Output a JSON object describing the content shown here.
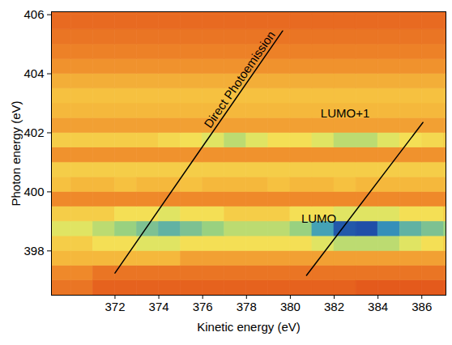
{
  "chart_data": {
    "type": "heatmap",
    "xlabel": "Kinetic energy (eV)",
    "ylabel": "Photon energy (eV)",
    "xlim": [
      369.1,
      387.1
    ],
    "ylim": [
      396.5,
      406.1
    ],
    "xticks": [
      372,
      374,
      376,
      378,
      380,
      382,
      384,
      386
    ],
    "yticks": [
      398,
      400,
      402,
      404,
      406
    ],
    "x_edges": [
      369,
      370,
      371,
      372,
      373,
      374,
      375,
      376,
      377,
      378,
      379,
      380,
      381,
      382,
      383,
      384,
      385,
      386,
      387,
      388
    ],
    "y_edges": [
      396.5,
      397,
      397.5,
      398,
      398.5,
      399,
      399.5,
      400,
      400.5,
      401,
      401.5,
      402,
      402.5,
      403,
      403.5,
      404,
      404.5,
      405,
      405.5,
      406,
      406.5
    ],
    "values": [
      [
        2.5,
        2.5,
        2,
        2,
        2,
        2,
        2,
        2,
        2,
        2,
        2,
        2,
        2,
        2,
        1.8,
        1.8,
        1.8,
        1.8,
        1.8
      ],
      [
        3,
        3,
        2.5,
        2.5,
        2.5,
        2.5,
        2.5,
        2.5,
        2.5,
        2.5,
        2.5,
        2.5,
        2.5,
        2.5,
        2.5,
        2.5,
        2.5,
        2.5,
        2.5
      ],
      [
        4,
        4,
        4,
        4,
        4,
        4,
        3.5,
        3.5,
        3.5,
        3.5,
        3.5,
        3.5,
        3.5,
        3.5,
        3.5,
        3.5,
        3.5,
        3.5,
        3.5
      ],
      [
        4.5,
        4.5,
        5,
        5,
        5.5,
        5.5,
        5,
        5,
        5,
        5,
        5,
        5,
        5.5,
        6,
        6,
        6,
        5.5,
        5,
        4.5
      ],
      [
        5.5,
        5.5,
        6,
        6.5,
        7,
        7.5,
        7,
        6.5,
        6,
        6,
        6,
        6.5,
        8,
        9.8,
        10,
        8.5,
        7.5,
        7,
        6.5
      ],
      [
        4.5,
        4.5,
        4.5,
        5,
        5,
        5.5,
        5,
        5,
        4.5,
        4.5,
        4.5,
        5,
        5,
        5.5,
        5.5,
        5.5,
        5,
        5,
        4.5
      ],
      [
        3,
        3,
        3,
        3,
        3,
        3,
        3,
        3,
        3,
        3,
        3,
        3,
        3,
        3,
        3,
        3,
        3,
        3,
        3
      ],
      [
        4.2,
        4,
        4,
        4.2,
        4,
        4,
        4.2,
        4,
        4,
        4,
        4.2,
        4,
        4,
        4.2,
        4,
        4,
        4,
        4,
        4
      ],
      [
        4.5,
        4.5,
        4.5,
        4.5,
        4.5,
        4.5,
        4.5,
        4.5,
        4.5,
        4.5,
        4.5,
        4.5,
        4.5,
        4.5,
        4.5,
        4.5,
        4.5,
        4.5,
        4.5
      ],
      [
        3.2,
        3.2,
        3.2,
        3.2,
        3.2,
        3.2,
        3.2,
        3.2,
        3.2,
        3.2,
        3.2,
        3.2,
        3.2,
        3.2,
        3.2,
        3.2,
        3.2,
        3.2,
        3.2
      ],
      [
        4.5,
        4.5,
        4.5,
        4.5,
        4.5,
        4.8,
        5,
        5.5,
        6,
        5.5,
        5,
        5,
        5.5,
        6,
        6,
        5.5,
        5,
        4.8,
        4.5
      ],
      [
        3.5,
        3.5,
        3.5,
        3.5,
        3.5,
        3.5,
        3.5,
        3.5,
        3.5,
        3.5,
        3.5,
        3.5,
        3.5,
        3.5,
        3.5,
        3.5,
        3.5,
        3.5,
        3.5
      ],
      [
        4,
        4,
        4,
        4,
        4,
        4,
        4,
        4,
        4,
        4,
        4,
        4,
        4,
        4,
        4,
        4,
        4,
        4,
        4
      ],
      [
        4.2,
        4.2,
        4.2,
        4.2,
        4.2,
        4.2,
        4.2,
        4.2,
        4.2,
        4.2,
        4.2,
        4.2,
        4.2,
        4.2,
        4.2,
        4.2,
        4.2,
        4.2,
        4.2
      ],
      [
        3.8,
        3.8,
        3.8,
        3.8,
        3.8,
        3.8,
        3.8,
        3.8,
        3.8,
        3.8,
        3.8,
        3.8,
        3.8,
        3.8,
        3.8,
        3.8,
        3.8,
        3.8,
        3.8
      ],
      [
        3.2,
        3.2,
        3.2,
        3.2,
        3.2,
        3.2,
        3.2,
        3.2,
        3.2,
        3.2,
        3.2,
        3.2,
        3.2,
        3.2,
        3.2,
        3.2,
        3.2,
        3.2,
        3.2
      ],
      [
        2.8,
        2.8,
        2.8,
        2.8,
        2.8,
        2.8,
        2.8,
        2.8,
        2.8,
        2.8,
        2.8,
        2.8,
        2.8,
        2.8,
        2.8,
        2.8,
        2.8,
        2.8,
        2.8
      ],
      [
        2.5,
        2.5,
        2.5,
        2.5,
        2.5,
        2.5,
        2.5,
        2.5,
        2.5,
        2.5,
        2.5,
        2.5,
        2.5,
        2.5,
        2.5,
        2.5,
        2.5,
        2.5,
        2.5
      ],
      [
        2.2,
        2.2,
        2.2,
        2.2,
        2.2,
        2.2,
        2.2,
        2.2,
        2.2,
        2.2,
        2.2,
        2.2,
        2.2,
        2.2,
        2.2,
        2.2,
        2.2,
        2.2,
        2.2
      ],
      [
        2.2,
        2.2,
        2.2,
        2.2,
        2.2,
        2.2,
        2.2,
        2.2,
        2.2,
        2.2,
        2.2,
        2.2,
        2.2,
        2.2,
        2.2,
        2.2,
        2.2,
        2.2,
        2.2
      ]
    ],
    "lines": [
      {
        "x": [
          372.0,
          379.65
        ],
        "y": [
          397.25,
          405.45
        ],
        "label": "Direct Photoemission",
        "label_x": 377.7,
        "label_y": 403.8
      },
      {
        "x": [
          380.74,
          386.05
        ],
        "y": [
          397.17,
          402.35
        ]
      }
    ],
    "annotations": [
      {
        "text": "LUMO",
        "x": 381.3,
        "y": 399.1
      },
      {
        "text": "LUMO+1",
        "x": 382.5,
        "y": 402.65
      }
    ]
  }
}
